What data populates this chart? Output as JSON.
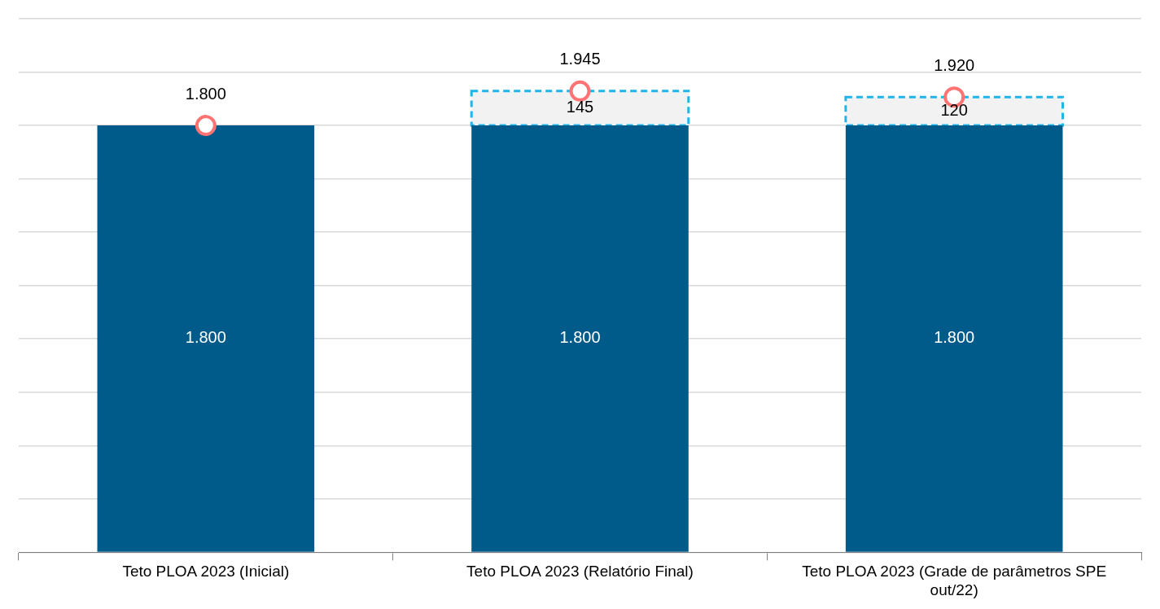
{
  "chart_data": {
    "type": "bar",
    "stacked": true,
    "categories": [
      "Teto PLOA 2023 (Inicial)",
      "Teto PLOA 2023 (Relatório Final)",
      "Teto PLOA 2023 (Grade de parâmetros SPE out/22)"
    ],
    "series": [
      {
        "color": "#005b8a",
        "values": [
          1800,
          1800,
          1800
        ],
        "value_labels": [
          "1.800",
          "1.800",
          "1.800"
        ]
      },
      {
        "color": "#1fb4ea",
        "line_style": "dashed",
        "values": [
          null,
          145,
          120
        ],
        "value_labels": [
          null,
          "145",
          "120"
        ]
      },
      {
        "type": "scatter",
        "color": "#ff7373",
        "marker": "circle",
        "x": [
          "Teto PLOA 2023 (Inicial)",
          "Teto PLOA 2023 (Relatório Final)",
          "Teto PLOA 2023 (Grade de parâmetros SPE out/22)"
        ],
        "values": [
          1800,
          1945,
          1920
        ],
        "value_labels": [
          "1.800",
          "1.945",
          "1.920"
        ]
      }
    ],
    "ylim": [
      0,
      2250
    ],
    "yticks": [
      {
        "value": 0,
        "label": null
      },
      {
        "value": 225,
        "label": null
      },
      {
        "value": 450,
        "label": null
      },
      {
        "value": 675,
        "label": null
      },
      {
        "value": 900,
        "label": null
      },
      {
        "value": 1125,
        "label": null
      },
      {
        "value": 1350,
        "label": null
      },
      {
        "value": 1575,
        "label": null
      },
      {
        "value": 1800,
        "label": null
      },
      {
        "value": 2025,
        "label": null
      },
      {
        "value": 2250,
        "label": null
      }
    ],
    "tick_labels": "x",
    "grid": "y",
    "legend": false
  }
}
